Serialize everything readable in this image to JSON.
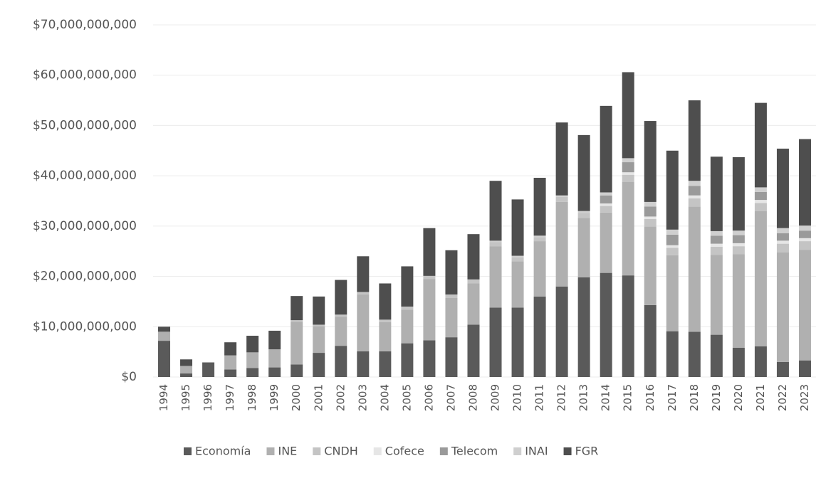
{
  "chart_data": {
    "type": "stacked_bar",
    "categories": [
      "1994",
      "1995",
      "1996",
      "1997",
      "1998",
      "1999",
      "2000",
      "2001",
      "2002",
      "2003",
      "2004",
      "2005",
      "2006",
      "2007",
      "2008",
      "2009",
      "2010",
      "2011",
      "2012",
      "2013",
      "2014",
      "2015",
      "2016",
      "2017",
      "2018",
      "2019",
      "2020",
      "2021",
      "2022",
      "2023"
    ],
    "series": [
      {
        "name": "Economía",
        "color": "#5a5a5a",
        "values": [
          7200000000.0,
          700000000.0,
          2900000000.0,
          1500000000.0,
          1800000000.0,
          1900000000.0,
          2500000000.0,
          4800000000.0,
          6200000000.0,
          5100000000.0,
          5100000000.0,
          6700000000.0,
          7300000000.0,
          7900000000.0,
          10400000000.0,
          13800000000.0,
          13800000000.0,
          16000000000.0,
          18000000000.0,
          19800000000.0,
          20700000000.0,
          20200000000.0,
          14300000000.0,
          9100000000.0,
          9000000000.0,
          8400000000.0,
          5800000000.0,
          6100000000.0,
          3000000000.0,
          3300000000.0
        ]
      },
      {
        "name": "INE",
        "color": "#b0b0b0",
        "values": [
          1800000000.0,
          1500000000.0,
          0,
          2800000000.0,
          3100000000.0,
          3600000000.0,
          8500000000.0,
          5300000000.0,
          5800000000.0,
          11300000000.0,
          5800000000.0,
          6700000000.0,
          12200000000.0,
          7800000000.0,
          8200000000.0,
          12200000000.0,
          9200000000.0,
          11000000000.0,
          16800000000.0,
          11800000000.0,
          12000000000.0,
          18600000000.0,
          15600000000.0,
          15100000000.0,
          24900000000.0,
          15900000000.0,
          18600000000.0,
          26900000000.0,
          21800000000.0,
          22000000000.0
        ]
      },
      {
        "name": "CNDH",
        "color": "#c4c4c4",
        "values": [
          0,
          0,
          0,
          0,
          0,
          0,
          300000000.0,
          300000000.0,
          400000000.0,
          500000000.0,
          500000000.0,
          600000000.0,
          600000000.0,
          700000000.0,
          800000000.0,
          800000000.0,
          800000000.0,
          800000000.0,
          1000000000.0,
          1000000000.0,
          1300000000.0,
          1400000000.0,
          1500000000.0,
          1500000000.0,
          1600000000.0,
          1600000000.0,
          1600000000.0,
          1600000000.0,
          1700000000.0,
          1700000000.0
        ]
      },
      {
        "name": "Cofece",
        "color": "#e6e6e6",
        "values": [
          0,
          0,
          0,
          0,
          0,
          0,
          0,
          0,
          0,
          0,
          0,
          0,
          0,
          0,
          0,
          0,
          0,
          0,
          0,
          0,
          500000000.0,
          500000000.0,
          500000000.0,
          500000000.0,
          600000000.0,
          600000000.0,
          600000000.0,
          600000000.0,
          600000000.0,
          600000000.0
        ]
      },
      {
        "name": "Telecom",
        "color": "#9a9a9a",
        "values": [
          0,
          0,
          0,
          0,
          0,
          0,
          0,
          0,
          0,
          0,
          0,
          0,
          0,
          0,
          0,
          0,
          0,
          0,
          0,
          0,
          1600000000.0,
          2000000000.0,
          2000000000.0,
          2100000000.0,
          1900000000.0,
          1600000000.0,
          1600000000.0,
          1600000000.0,
          1500000000.0,
          1500000000.0
        ]
      },
      {
        "name": "INAI",
        "color": "#cfcfcf",
        "values": [
          0,
          0,
          0,
          0,
          0,
          0,
          0,
          0,
          0,
          0,
          0,
          0,
          0,
          0,
          0,
          300000000.0,
          300000000.0,
          300000000.0,
          300000000.0,
          400000000.0,
          600000000.0,
          800000000.0,
          900000000.0,
          1000000000.0,
          1000000000.0,
          900000000.0,
          900000000.0,
          900000000.0,
          1000000000.0,
          1000000000.0
        ]
      },
      {
        "name": "FGR",
        "color": "#4e4e4e",
        "values": [
          1000000000.0,
          1300000000.0,
          0,
          2600000000.0,
          3300000000.0,
          3700000000.0,
          4800000000.0,
          5600000000.0,
          6900000000.0,
          7100000000.0,
          7200000000.0,
          8000000000.0,
          9500000000.0,
          8800000000.0,
          9000000000.0,
          11900000000.0,
          11200000000.0,
          11500000000.0,
          14500000000.0,
          15100000000.0,
          17200000000.0,
          17100000000.0,
          16100000000.0,
          15700000000.0,
          16000000000.0,
          14800000000.0,
          14600000000.0,
          16800000000.0,
          15800000000.0,
          17200000000.0
        ]
      }
    ],
    "ylim": [
      0,
      70000000000
    ],
    "yticks": [
      {
        "value": 0,
        "label": "$0"
      },
      {
        "value": 10000000000,
        "label": "$10,000,000,000"
      },
      {
        "value": 20000000000,
        "label": "$20,000,000,000"
      },
      {
        "value": 30000000000,
        "label": "$30,000,000,000"
      },
      {
        "value": 40000000000,
        "label": "$40,000,000,000"
      },
      {
        "value": 50000000000,
        "label": "$50,000,000,000"
      },
      {
        "value": 60000000000,
        "label": "$60,000,000,000"
      },
      {
        "value": 70000000000,
        "label": "$70,000,000,000"
      }
    ],
    "grid": true,
    "legend": "bottom"
  }
}
